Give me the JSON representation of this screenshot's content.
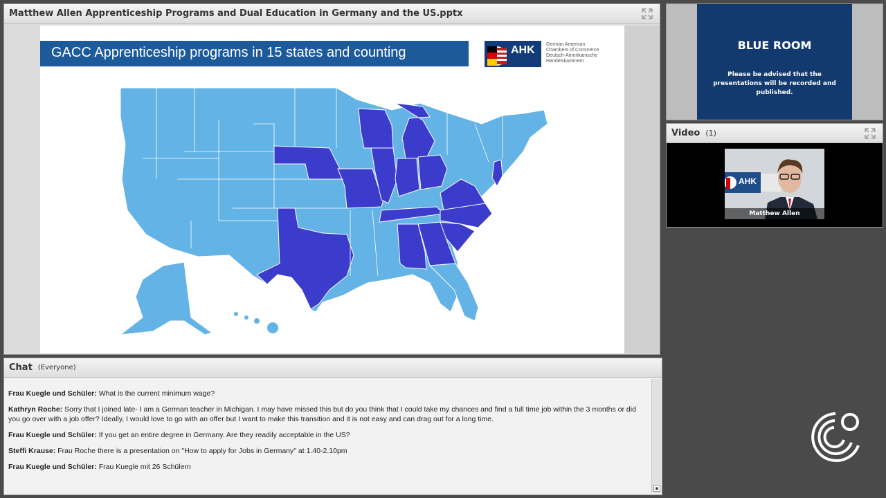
{
  "share_pod": {
    "title": "Matthew Allen Apprenticeship Programs and Dual Education in Germany and the US.pptx",
    "slide": {
      "title": "GACC Apprenticeship programs in 15 states and counting",
      "logo": {
        "text": "AHK",
        "caption_lines": [
          "German American",
          "Chambers of Commerce",
          "Deutsch-Amerikanische",
          "Handelskammern"
        ]
      },
      "map": {
        "highlighted_color": "#3c3ccc",
        "base_color": "#63b3e6",
        "highlighted_count": 15
      }
    }
  },
  "blue_room": {
    "title": "BLUE ROOM",
    "note": "Please be advised that the presentations will be recorded and published."
  },
  "video_pod": {
    "title": "Video",
    "count": "(1)",
    "speaker": "Matthew Allen",
    "frame_logo_text": "AHK"
  },
  "chat": {
    "title": "Chat",
    "scope": "(Everyone)",
    "messages": [
      {
        "sender": "Frau Kuegle und Schüler:",
        "text": "What is the current minimum wage?"
      },
      {
        "sender": "Kathryn Roche:",
        "text": "Sorry that I joined late- I am a German teacher in Michigan. I may have missed this but do you think that I could take my chances and find a full time job within the 3 months or did you go over with a job offer? Ideally, I would love to go with an offer but I want to make this transition and it is not easy and can drag out for a long time."
      },
      {
        "sender": "Frau Kuegle und Schüler:",
        "text": "If you get an entire degree in Germany. Are they readily acceptable in the US?"
      },
      {
        "sender": "Steffi Krause:",
        "text": "Frau Roche there is a presentation on \"How to apply for Jobs in Germany\" at 1.40-2.10pm"
      },
      {
        "sender": "Frau Kuegle und Schüler:",
        "text": "Frau Kuegle mit 26 Schülern"
      }
    ]
  }
}
